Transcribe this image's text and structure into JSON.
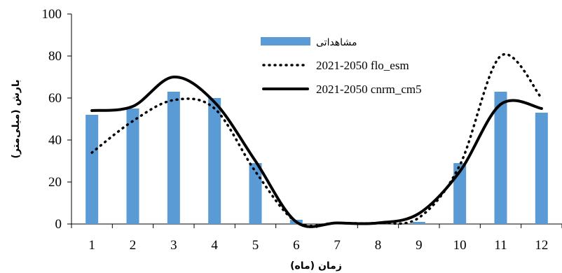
{
  "chart_data": {
    "type": "bar",
    "categories": [
      "1",
      "2",
      "3",
      "4",
      "5",
      "6",
      "7",
      "8",
      "9",
      "10",
      "11",
      "12"
    ],
    "xlabel": "زمان (ماه)",
    "ylabel": "بارش (میلی‌متر)",
    "ylim": [
      0,
      100
    ],
    "yticks": [
      0,
      20,
      40,
      60,
      80,
      100
    ],
    "grid": false,
    "legend_position": "top-center",
    "series": [
      {
        "name": "مشاهداتی",
        "kind": "bar",
        "color": "#5b9bd5",
        "values": [
          52,
          55,
          63,
          60,
          29,
          2,
          1,
          0.5,
          1,
          29,
          63,
          53
        ]
      },
      {
        "name": "2021-2050 flo_esm",
        "kind": "line",
        "style": "dotted",
        "color": "#000000",
        "values": [
          34,
          49,
          59,
          55,
          25,
          1,
          0.5,
          0.5,
          3,
          28,
          80,
          60
        ]
      },
      {
        "name": "2021-2050 cnrm_cm5",
        "kind": "line",
        "style": "solid",
        "color": "#000000",
        "values": [
          54,
          56,
          70,
          58,
          30,
          1,
          0.5,
          0.5,
          5,
          25,
          57,
          55
        ]
      }
    ]
  }
}
